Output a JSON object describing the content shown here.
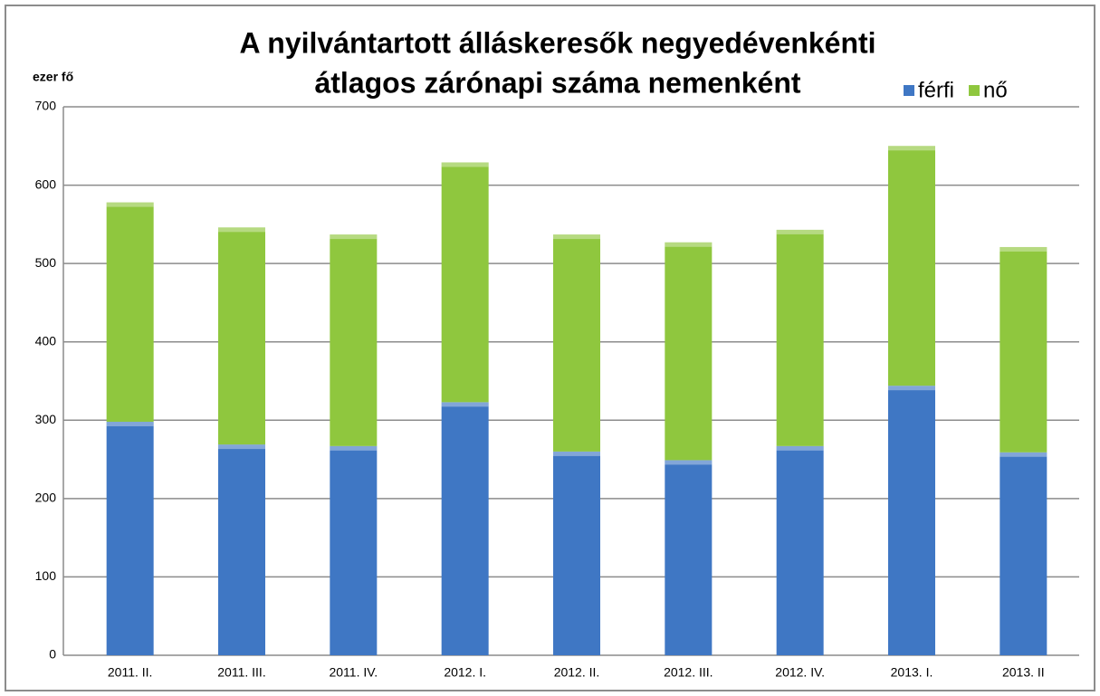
{
  "chart_data": {
    "type": "stacked_bar",
    "title": [
      "A nyilvántartott álláskeresők negyedévenkénti",
      "átlagos zárónapi száma nemenként"
    ],
    "y_label": "ezer fő",
    "categories": [
      "2011. II.",
      "2011. III.",
      "2011. IV.",
      "2012. I.",
      "2012. II.",
      "2012. III.",
      "2012. IV.",
      "2013. I.",
      "2013. II"
    ],
    "series": [
      {
        "name": "férfi",
        "color": "#3f77c4",
        "values": [
          298,
          269,
          267,
          323,
          260,
          249,
          267,
          344,
          259
        ]
      },
      {
        "name": "nő",
        "color": "#8fc73e",
        "values": [
          280,
          277,
          270,
          306,
          277,
          278,
          276,
          306,
          262
        ]
      }
    ],
    "ylim": [
      0,
      700
    ],
    "yticks": [
      0,
      100,
      200,
      300,
      400,
      500,
      600,
      700
    ],
    "grid": true,
    "legend": "top-right"
  }
}
